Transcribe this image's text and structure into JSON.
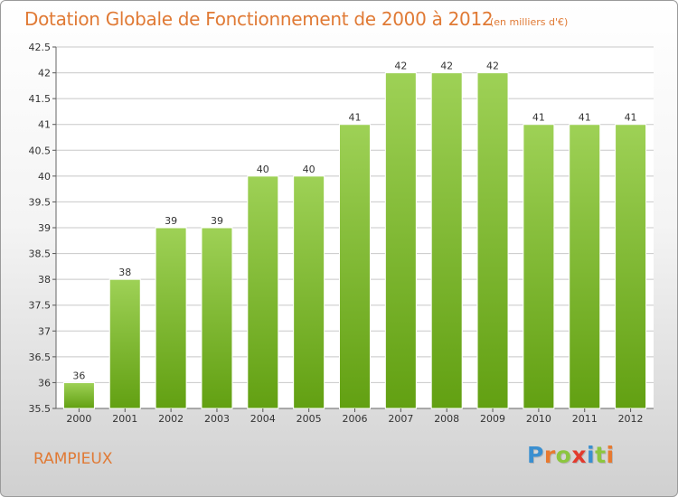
{
  "title": "Dotation Globale de Fonctionnement de 2000 à 2012",
  "subtitle": "(en milliers d'€)",
  "commune": "RAMPIEUX",
  "logo": {
    "text": "Proxiti",
    "letter_colors": [
      "#3a8fd0",
      "#e8792f",
      "#8cc63f",
      "#e23a2e",
      "#3a8fd0",
      "#8cc63f",
      "#e8792f"
    ]
  },
  "colors": {
    "title": "#e07a35",
    "bar_top": "#9ed156",
    "bar_bottom": "#62a012",
    "grid": "#c8c8c8"
  },
  "chart_data": {
    "type": "bar",
    "title": "Dotation Globale de Fonctionnement de 2000 à 2012",
    "subtitle": "(en milliers d'€)",
    "xlabel": "",
    "ylabel": "",
    "categories": [
      "2000",
      "2001",
      "2002",
      "2003",
      "2004",
      "2005",
      "2006",
      "2007",
      "2008",
      "2009",
      "2010",
      "2011",
      "2012"
    ],
    "values": [
      36,
      38,
      39,
      39,
      40,
      40,
      41,
      42,
      42,
      42,
      41,
      41,
      41
    ],
    "ylim": [
      35.5,
      42.5
    ],
    "yticks": [
      "35.5",
      "36",
      "36.5",
      "37",
      "37.5",
      "38",
      "38.5",
      "39",
      "39.5",
      "40",
      "40.5",
      "41",
      "41.5",
      "42",
      "42.5"
    ],
    "grid": true,
    "legend": "none"
  }
}
